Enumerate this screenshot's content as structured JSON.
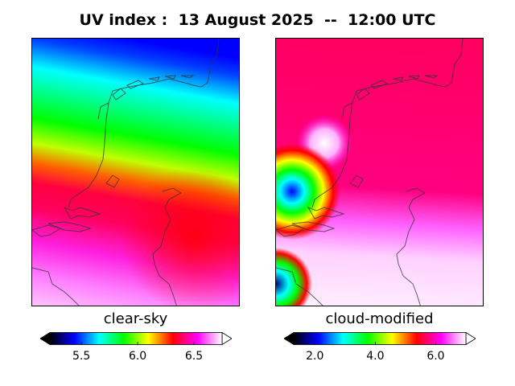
{
  "title": "UV index :  13 August 2025  --  12:00 UTC",
  "panels": [
    {
      "label": "clear-sky",
      "colorbar": {
        "ticks": [
          5.5,
          6.0,
          6.5
        ],
        "tick_labels": [
          "5.5",
          "6.0",
          "6.5"
        ],
        "range": [
          5.22,
          6.75
        ]
      }
    },
    {
      "label": "cloud-modified",
      "colorbar": {
        "ticks": [
          2.0,
          4.0,
          6.0
        ],
        "tick_labels": [
          "2.0",
          "4.0",
          "6.0"
        ],
        "range": [
          1.3,
          7.0
        ]
      }
    }
  ],
  "colormap": [
    "#000000",
    "#0000ff",
    "#00ffff",
    "#00ff00",
    "#ffff00",
    "#ff0000",
    "#ff00ff",
    "#ffffff"
  ]
}
